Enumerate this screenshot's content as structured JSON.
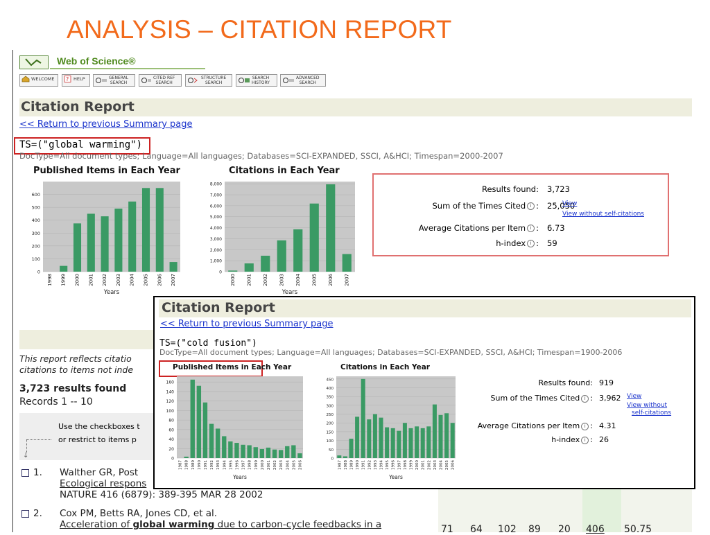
{
  "slide_title": "ANALYSIS – CITATION REPORT",
  "colors": {
    "accent_orange": "#f26a1b",
    "bar_green": "#3a9a64",
    "chart_bg": "#c8c8c8",
    "link_blue": "#1a33cc",
    "header_bg": "#eeeede",
    "highlight_red": "#cc2222",
    "stats_border": "#e07070"
  },
  "app": {
    "brand": "Web of Science®",
    "toolbar": [
      {
        "label": "WELCOME",
        "icon": "home-icon"
      },
      {
        "label": "HELP",
        "icon": "help-icon"
      },
      {
        "label": "GENERAL\nSEARCH",
        "icon": "search-icon"
      },
      {
        "label": "CITED REF\nSEARCH",
        "icon": "cited-ref-icon"
      },
      {
        "label": "STRUCTURE\nSEARCH",
        "icon": "structure-icon"
      },
      {
        "label": "SEARCH\nHISTORY",
        "icon": "history-icon"
      },
      {
        "label": "ADVANCED\nSEARCH",
        "icon": "advanced-search-icon"
      }
    ]
  },
  "report1": {
    "title": "Citation Report",
    "return_link": "<< Return to previous Summary page",
    "query": "TS=(\"global warming\")",
    "meta": "DocType=All document types; Language=All languages; Databases=SCI-EXPANDED, SSCI, A&HCI; Timespan=2000-2007",
    "stats": {
      "results_found_label": "Results found:",
      "results_found_value": "3,723",
      "sum_cited_label": "Sum of the Times Cited",
      "sum_cited_value": "25,050",
      "view_link": "View",
      "view_without_link": "View without self-citations",
      "avg_label": "Average Citations per Item",
      "avg_value": "6.73",
      "h_label": "h-index",
      "h_value": "59",
      "colon": ":"
    }
  },
  "report2": {
    "title": "Citation Report",
    "return_link": "<< Return to previous Summary page",
    "query": "TS=(\"cold fusion\")",
    "meta": "DocType=All document types; Language=All languages; Databases=SCI-EXPANDED, SSCI, A&HCI; Timespan=1900-2006",
    "stats": {
      "results_found_label": "Results found:",
      "results_found_value": "919",
      "sum_cited_label": "Sum of the Times Cited",
      "sum_cited_value": "3,962",
      "view_link": "View",
      "view_without_link_1": "View without",
      "view_without_link_2": "self-citations",
      "avg_label": "Average Citations per Item",
      "avg_value": "4.31",
      "h_label": "h-index",
      "h_value": "26",
      "colon": ":"
    }
  },
  "summary": {
    "report_text_1": "This report reflects citatio",
    "report_text_2": "citations to items not inde",
    "results_found": "3,723 results found",
    "records": "Records 1 -- 10",
    "instr_1": "Use the checkboxes t",
    "instr_2": "or restrict to items p",
    "records_list": [
      {
        "num": "1.",
        "authors": "Walther GR, Post",
        "title_start": "Ecological respons",
        "source": "NATURE 416 (6879): 389-395 MAR 28 2002"
      },
      {
        "num": "2.",
        "authors": "Cox PM, Betts RA, Jones CD, et al.",
        "title_pre": "Acceleration of ",
        "title_bold": "global warming",
        "title_post": " due to carbon-cycle feedbacks in a"
      }
    ],
    "row2_cells": [
      "71",
      "64",
      "102",
      "89",
      "20",
      "406",
      "50.75"
    ]
  },
  "chart_data": [
    {
      "type": "bar",
      "title": "Published Items in Each Year",
      "xlabel": "Years",
      "categories": [
        "1998",
        "1999",
        "2000",
        "2001",
        "2002",
        "2003",
        "2004",
        "2005",
        "2006",
        "2007"
      ],
      "values": [
        0,
        45,
        375,
        450,
        430,
        490,
        545,
        650,
        650,
        75
      ],
      "yticks": [
        "0",
        "100",
        "200",
        "300",
        "400",
        "500",
        "600"
      ],
      "ylim": [
        0,
        700
      ]
    },
    {
      "type": "bar",
      "title": "Citations in Each Year",
      "xlabel": "Years",
      "categories": [
        "2000",
        "2001",
        "2002",
        "2003",
        "2004",
        "2005",
        "2006",
        "2007"
      ],
      "values": [
        100,
        750,
        1450,
        2850,
        3850,
        6200,
        7950,
        1600
      ],
      "yticks": [
        "0",
        "1,000",
        "2,000",
        "3,000",
        "4,000",
        "5,000",
        "6,000",
        "7,000",
        "8,000"
      ],
      "ylim": [
        0,
        8200
      ]
    },
    {
      "type": "bar",
      "title": "Published Items in Each Year",
      "xlabel": "Years",
      "categories": [
        "1987",
        "1988",
        "1989",
        "1990",
        "1991",
        "1992",
        "1993",
        "1994",
        "1995",
        "1996",
        "1997",
        "1998",
        "1999",
        "2000",
        "2001",
        "2002",
        "2003",
        "2004",
        "2005",
        "2006"
      ],
      "values": [
        0,
        3,
        165,
        152,
        117,
        72,
        62,
        46,
        35,
        32,
        28,
        27,
        23,
        19,
        22,
        18,
        17,
        25,
        27,
        10
      ],
      "yticks": [
        "0",
        "20",
        "40",
        "60",
        "80",
        "100",
        "120",
        "140",
        "160"
      ],
      "ylim": [
        0,
        172
      ]
    },
    {
      "type": "bar",
      "title": "Citations in Each Year",
      "xlabel": "Years",
      "categories": [
        "1987",
        "1988",
        "1989",
        "1990",
        "1991",
        "1992",
        "1993",
        "1994",
        "1995",
        "1996",
        "1997",
        "1998",
        "1999",
        "2000",
        "2001",
        "2002",
        "2003",
        "2004",
        "2005",
        "2006"
      ],
      "values": [
        15,
        10,
        110,
        235,
        450,
        220,
        250,
        230,
        175,
        170,
        155,
        200,
        170,
        180,
        170,
        180,
        305,
        245,
        255,
        200
      ],
      "yticks": [
        "0",
        "50",
        "100",
        "150",
        "200",
        "250",
        "300",
        "350",
        "400",
        "450"
      ],
      "ylim": [
        0,
        465
      ]
    }
  ]
}
